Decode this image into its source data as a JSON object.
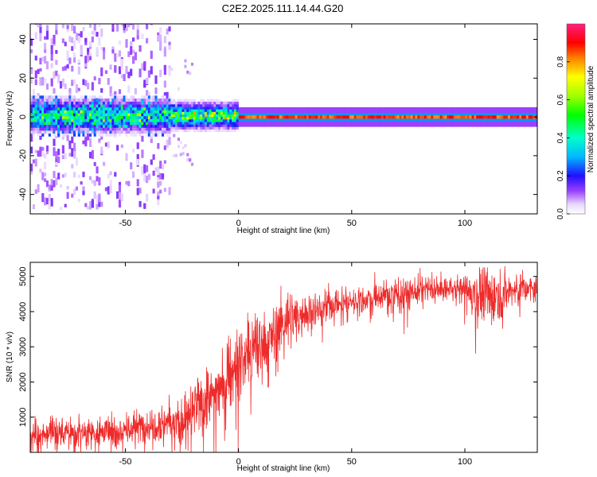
{
  "title": "C2E2.2025.111.14.44.G20",
  "colors": {
    "snr_line": "#ee2a2a",
    "frame": "#000000",
    "background": "#ffffff"
  },
  "chart_data": [
    {
      "type": "heatmap",
      "title": "C2E2.2025.111.14.44.G20",
      "xlabel": "Height of straight line (km)",
      "ylabel": "Frequency (Hz)",
      "xlim": [
        -92,
        132
      ],
      "ylim": [
        -50,
        48
      ],
      "xticks": [
        -50,
        0,
        50,
        100
      ],
      "yticks": [
        -40,
        -20,
        0,
        20,
        40
      ],
      "grid": false,
      "colorbar": {
        "label": "Normalized spectral amplitude",
        "range": [
          0.0,
          1.0
        ],
        "ticks": [
          "0.0",
          "0.2",
          "0.4",
          "0.6",
          "0.8"
        ],
        "colormap": "rainbow (white-violet-blue-cyan-green-yellow-red-magenta)"
      },
      "features": [
        {
          "x_range": [
            -92,
            -30
          ],
          "description_level": "diffuse noise spread over ±48 Hz, amplitude 0.0–0.4, band near 0 Hz amplitude 0.3–0.6"
        },
        {
          "x_range": [
            -30,
            0
          ],
          "description_level": "band near 0 Hz about ±8 Hz wide, amplitude 0.4–0.7"
        },
        {
          "x_range": [
            0,
            132
          ],
          "description_level": "narrow line at 0 Hz, amplitude 0.8–0.95, blue halo to about ±5 Hz"
        }
      ]
    },
    {
      "type": "line",
      "xlabel": "Height of straight line (km)",
      "ylabel": "SNR (10 * v/v)",
      "xlim": [
        -92,
        132
      ],
      "ylim": [
        0,
        5400
      ],
      "xticks": [
        -50,
        0,
        50,
        100
      ],
      "yticks": [
        1000,
        2000,
        3000,
        4000,
        5000
      ],
      "grid": false,
      "series": [
        {
          "envelope_x": [
            -92,
            -80,
            -70,
            -60,
            -50,
            -40,
            -30,
            -25,
            -20,
            -15,
            -10,
            -5,
            0,
            5,
            10,
            15,
            20,
            25,
            30,
            40,
            50,
            60,
            65,
            70,
            75,
            80,
            90,
            100,
            105,
            110,
            120,
            132
          ],
          "envelope_mean": [
            500,
            550,
            580,
            600,
            620,
            800,
            900,
            700,
            1150,
            1500,
            1700,
            2100,
            2500,
            2800,
            2950,
            3300,
            3700,
            3850,
            3950,
            4200,
            4300,
            4400,
            4450,
            4500,
            4550,
            4600,
            4650,
            4600,
            4500,
            4400,
            4600,
            4650
          ],
          "envelope_spread": [
            450,
            450,
            450,
            450,
            500,
            600,
            700,
            700,
            800,
            900,
            1000,
            1100,
            1100,
            1200,
            1100,
            1000,
            900,
            800,
            700,
            500,
            400,
            400,
            500,
            700,
            500,
            500,
            400,
            500,
            900,
            1000,
            500,
            500
          ]
        }
      ]
    }
  ]
}
